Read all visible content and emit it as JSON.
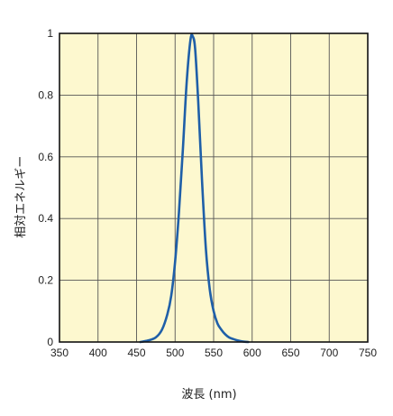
{
  "chart_data": {
    "type": "line",
    "xlabel": "波長 (nm)",
    "ylabel": "相対エネルギー",
    "xlim": [
      350,
      750
    ],
    "ylim": [
      0,
      1
    ],
    "x_ticks": [
      "350",
      "400",
      "450",
      "500",
      "550",
      "600",
      "650",
      "700",
      "750"
    ],
    "y_ticks": [
      "0",
      "0.2",
      "0.4",
      "0.6",
      "0.8",
      "1"
    ],
    "grid": true,
    "background_color": "#fdf8cf",
    "line_color": "#1f5fa8",
    "series": [
      {
        "x": [
          455,
          465,
          475,
          483,
          490,
          495,
          500,
          505,
          510,
          515,
          520,
          523,
          526,
          530,
          535,
          540,
          545,
          550,
          555,
          560,
          565,
          570,
          575,
          580,
          585,
          590,
          595
        ],
        "values": [
          0.0,
          0.005,
          0.015,
          0.04,
          0.09,
          0.15,
          0.26,
          0.42,
          0.62,
          0.84,
          0.98,
          0.99,
          0.95,
          0.78,
          0.52,
          0.3,
          0.17,
          0.1,
          0.06,
          0.04,
          0.025,
          0.015,
          0.01,
          0.006,
          0.003,
          0.001,
          0.0
        ]
      }
    ]
  }
}
